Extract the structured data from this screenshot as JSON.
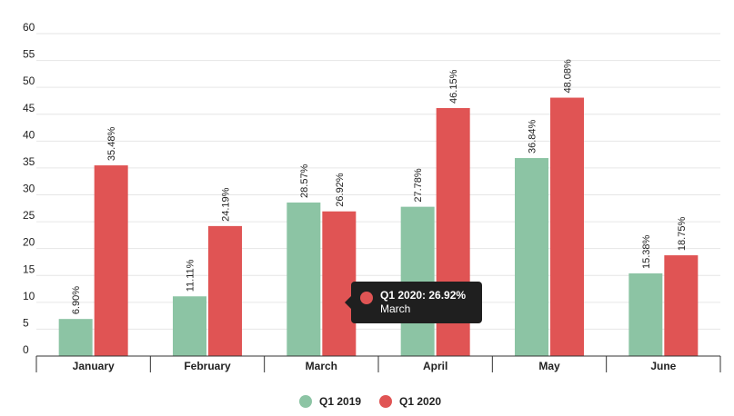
{
  "chart_data": {
    "type": "bar",
    "categories": [
      "January",
      "February",
      "March",
      "April",
      "May",
      "June"
    ],
    "series": [
      {
        "name": "Q1 2019",
        "color": "#8cc4a4",
        "values": [
          6.9,
          11.11,
          28.57,
          27.78,
          36.84,
          15.38
        ],
        "labels": [
          "6.90%",
          "11.11%",
          "28.57%",
          "27.78%",
          "36.84%",
          "15.38%"
        ]
      },
      {
        "name": "Q1 2020",
        "color": "#e05454",
        "values": [
          35.48,
          24.19,
          26.92,
          46.15,
          48.08,
          18.75
        ],
        "labels": [
          "35.48%",
          "24.19%",
          "26.92%",
          "46.15%",
          "48.08%",
          "18.75%"
        ]
      }
    ],
    "ylim": [
      0,
      60
    ],
    "yticks": [
      0,
      5,
      10,
      15,
      20,
      25,
      30,
      35,
      40,
      45,
      50,
      55,
      60
    ],
    "grid": true,
    "legend_position": "bottom-center"
  },
  "tooltip": {
    "title": "Q1 2020: 26.92%",
    "subtitle": "March",
    "color": "#e05454"
  }
}
